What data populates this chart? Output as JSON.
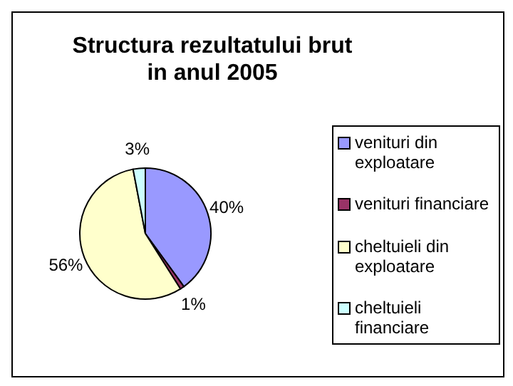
{
  "chart_data": {
    "type": "pie",
    "title": "Structura rezultatului brut in anul 2005",
    "categories": [
      "venituri din exploatare",
      "venituri financiare",
      "cheltuieli din exploatare",
      "cheltuieli financiare"
    ],
    "values": [
      40,
      1,
      56,
      3
    ],
    "colors": [
      "#9999ff",
      "#993366",
      "#ffffcc",
      "#ccffff"
    ],
    "value_labels": [
      "40%",
      "1%",
      "56%",
      "3%"
    ],
    "legend": "right"
  }
}
